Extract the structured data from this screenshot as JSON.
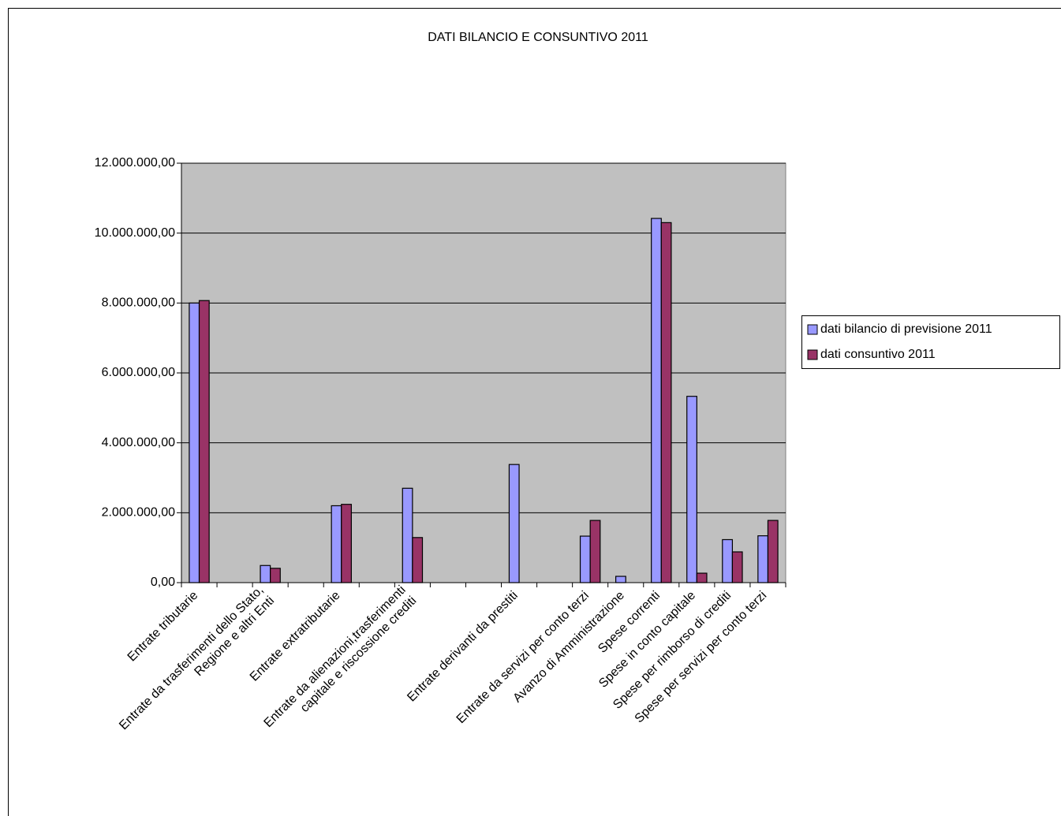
{
  "chart_data": {
    "type": "bar",
    "title": "DATI BILANCIO E CONSUNTIVO 2011",
    "categories": [
      "Entrate tributarie",
      null,
      "Entrate da trasferimenti dello Stato,\nRegione e altri Enti",
      null,
      "Entrate extratributarie",
      null,
      "Entrate da alienazioni,trasferimenti\ncapitale e riscossione crediti",
      null,
      null,
      "Entrate derivanti da prestiti",
      null,
      "Entrate da servizi per conto terzi",
      "Avanzo di Amministrazione",
      "Spese correnti",
      "Spese in conto capitale",
      "Spese per rimborso di crediti",
      "Spese per servizi per conto terzi"
    ],
    "series": [
      {
        "name": "dati bilancio di previsione 2011",
        "color": "#9999ff",
        "values": [
          8000000,
          null,
          490000,
          null,
          2200000,
          null,
          2700000,
          null,
          null,
          3380000,
          null,
          1330000,
          180000,
          10420000,
          5330000,
          1230000,
          1340000
        ]
      },
      {
        "name": "dati consuntivo 2011",
        "color": "#993366",
        "values": [
          8070000,
          null,
          410000,
          null,
          2240000,
          null,
          1290000,
          null,
          null,
          null,
          null,
          1780000,
          null,
          10300000,
          270000,
          880000,
          1780000
        ]
      }
    ],
    "ylim": [
      0,
      12000000
    ],
    "yticks": [
      {
        "value": 0,
        "label": "0,00"
      },
      {
        "value": 2000000,
        "label": "2.000.000,00"
      },
      {
        "value": 4000000,
        "label": "4.000.000,00"
      },
      {
        "value": 6000000,
        "label": "6.000.000,00"
      },
      {
        "value": 8000000,
        "label": "8.000.000,00"
      },
      {
        "value": 10000000,
        "label": "10.000.000,00"
      },
      {
        "value": 12000000,
        "label": "12.000.000,00"
      }
    ],
    "grid": true,
    "legend": "right"
  }
}
